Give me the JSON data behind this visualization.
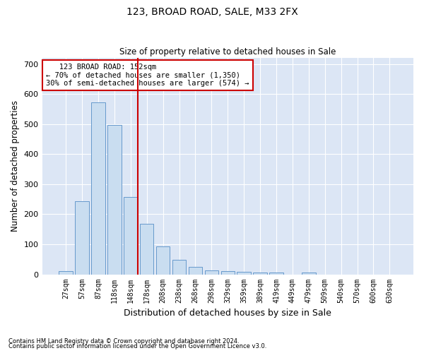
{
  "title1": "123, BROAD ROAD, SALE, M33 2FX",
  "title2": "Size of property relative to detached houses in Sale",
  "xlabel": "Distribution of detached houses by size in Sale",
  "ylabel": "Number of detached properties",
  "footnote1": "Contains HM Land Registry data © Crown copyright and database right 2024.",
  "footnote2": "Contains public sector information licensed under the Open Government Licence v3.0.",
  "annotation_line1": "   123 BROAD ROAD: 152sqm",
  "annotation_line2": "← 70% of detached houses are smaller (1,350)",
  "annotation_line3": "30% of semi-detached houses are larger (574) →",
  "bar_color": "#c9ddf0",
  "bar_edge_color": "#6699cc",
  "highlight_color": "#cc0000",
  "background_color": "#dce6f5",
  "grid_color": "#ffffff",
  "categories": [
    "27sqm",
    "57sqm",
    "87sqm",
    "118sqm",
    "148sqm",
    "178sqm",
    "208sqm",
    "238sqm",
    "268sqm",
    "298sqm",
    "329sqm",
    "359sqm",
    "389sqm",
    "419sqm",
    "449sqm",
    "479sqm",
    "509sqm",
    "540sqm",
    "570sqm",
    "600sqm",
    "630sqm"
  ],
  "values": [
    10,
    243,
    572,
    498,
    258,
    168,
    92,
    48,
    25,
    13,
    11,
    8,
    5,
    5,
    0,
    5,
    0,
    0,
    0,
    0,
    0
  ],
  "highlight_index": 4,
  "ylim": [
    0,
    720
  ],
  "yticks": [
    0,
    100,
    200,
    300,
    400,
    500,
    600,
    700
  ]
}
